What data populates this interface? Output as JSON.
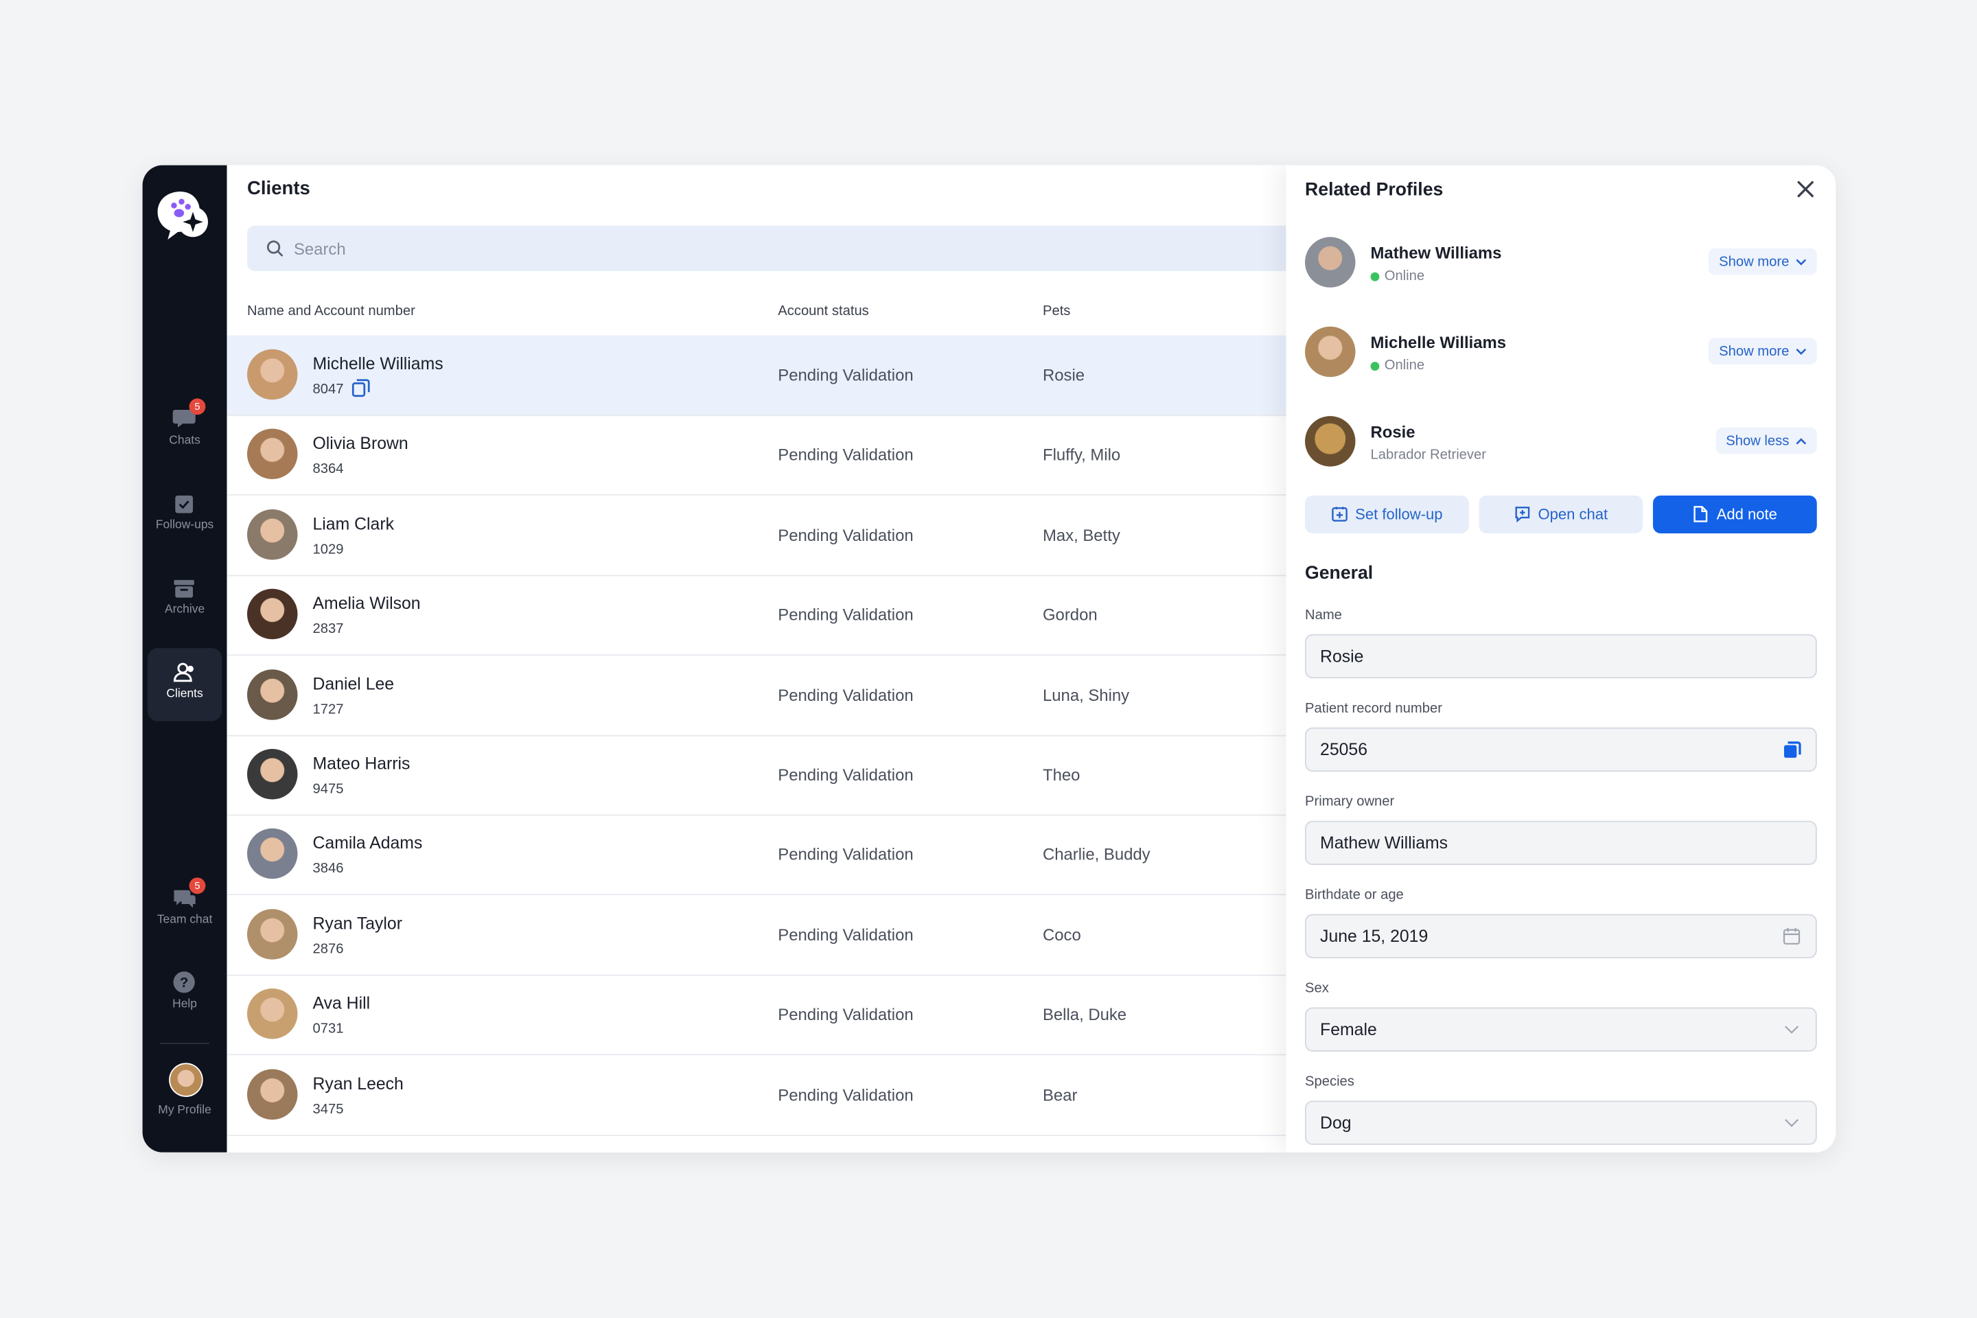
{
  "sidebar": {
    "nav": [
      {
        "label": "Chats",
        "badge": "5"
      },
      {
        "label": "Follow-ups"
      },
      {
        "label": "Archive"
      },
      {
        "label": "Clients"
      },
      {
        "label": "Team chat",
        "badge": "5"
      },
      {
        "label": "Help"
      },
      {
        "label": "My Profile"
      }
    ]
  },
  "clients": {
    "title": "Clients",
    "search_placeholder": "Search",
    "columns": [
      "Name and Account number",
      "Account status",
      "Pets"
    ],
    "rows": [
      {
        "name": "Michelle Williams",
        "account": "8047",
        "status": "Pending Validation",
        "pets": "Rosie"
      },
      {
        "name": "Olivia Brown",
        "account": "8364",
        "status": "Pending Validation",
        "pets": "Fluffy, Milo"
      },
      {
        "name": "Liam Clark",
        "account": "1029",
        "status": "Pending Validation",
        "pets": "Max, Betty"
      },
      {
        "name": "Amelia Wilson",
        "account": "2837",
        "status": "Pending Validation",
        "pets": "Gordon"
      },
      {
        "name": "Daniel Lee",
        "account": "1727",
        "status": "Pending Validation",
        "pets": "Luna, Shiny"
      },
      {
        "name": "Mateo Harris",
        "account": "9475",
        "status": "Pending Validation",
        "pets": "Theo"
      },
      {
        "name": "Camila Adams",
        "account": "3846",
        "status": "Pending Validation",
        "pets": "Charlie, Buddy"
      },
      {
        "name": "Ryan Taylor",
        "account": "2876",
        "status": "Pending Validation",
        "pets": "Coco"
      },
      {
        "name": "Ava Hill",
        "account": "0731",
        "status": "Pending Validation",
        "pets": "Bella, Duke"
      },
      {
        "name": "Ryan Leech",
        "account": "3475",
        "status": "Pending Validation",
        "pets": "Bear"
      }
    ]
  },
  "panel": {
    "title": "Related Profiles",
    "profiles": [
      {
        "name": "Mathew Williams",
        "status": "Online",
        "toggle": "Show more"
      },
      {
        "name": "Michelle Williams",
        "status": "Online",
        "toggle": "Show more"
      },
      {
        "name": "Rosie",
        "status": "Labrador Retriever",
        "toggle": "Show less"
      }
    ],
    "actions": [
      "Set follow-up",
      "Open chat",
      "Add note"
    ],
    "section": "General",
    "fields": [
      {
        "label": "Name",
        "value": "Rosie"
      },
      {
        "label": "Patient record number",
        "value": "25056"
      },
      {
        "label": "Primary owner",
        "value": "Mathew Williams"
      },
      {
        "label": "Birthdate or age",
        "value": "June 15, 2019"
      },
      {
        "label": "Sex",
        "value": "Female"
      },
      {
        "label": "Species",
        "value": "Dog"
      }
    ]
  }
}
